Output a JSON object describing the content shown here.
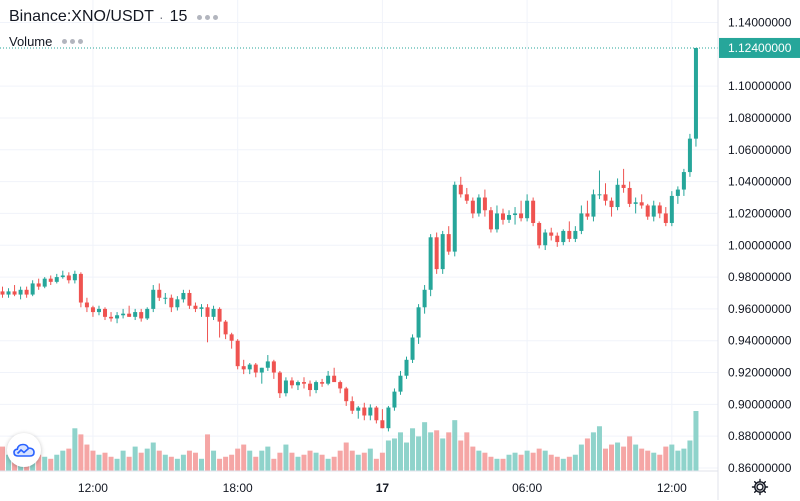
{
  "legend": {
    "symbol": "Binance:XNO/USDT",
    "separator": "·",
    "interval": "15",
    "volume_label": "Volume"
  },
  "colors": {
    "up": "#26a69a",
    "down": "#ef5350",
    "up_volume": "#8fd3cb",
    "down_volume": "#f5a6a5",
    "grid": "#f0f3fa",
    "axis_text": "#131722",
    "last_price_bg": "#26a69a"
  },
  "icons": {
    "brand": "tradingview-cloud-icon",
    "settings": "gear-icon"
  },
  "chart_data": {
    "type": "candlestick",
    "symbol": "Binance:XNO/USDT",
    "interval": "15",
    "ylim": [
      0.86,
      1.144
    ],
    "y_ticks": [
      {
        "v": 1.14,
        "label": "1.14000000"
      },
      {
        "v": 1.1,
        "label": "1.10000000"
      },
      {
        "v": 1.08,
        "label": "1.08000000"
      },
      {
        "v": 1.06,
        "label": "1.06000000"
      },
      {
        "v": 1.04,
        "label": "1.04000000"
      },
      {
        "v": 1.02,
        "label": "1.02000000"
      },
      {
        "v": 1.0,
        "label": "1.00000000"
      },
      {
        "v": 0.98,
        "label": "0.98000000"
      },
      {
        "v": 0.96,
        "label": "0.96000000"
      },
      {
        "v": 0.94,
        "label": "0.94000000"
      },
      {
        "v": 0.92,
        "label": "0.92000000"
      },
      {
        "v": 0.9,
        "label": "0.90000000"
      },
      {
        "v": 0.88,
        "label": "0.88000000"
      },
      {
        "v": 0.86,
        "label": "0.86000000"
      }
    ],
    "x_ticks": [
      {
        "i": 15,
        "label": "12:00",
        "bold": false
      },
      {
        "i": 39,
        "label": "18:00",
        "bold": false
      },
      {
        "i": 63,
        "label": "17",
        "bold": true
      },
      {
        "i": 87,
        "label": "06:00",
        "bold": false
      },
      {
        "i": 111,
        "label": "12:00",
        "bold": false
      }
    ],
    "last_price": {
      "v": 1.124,
      "label": "1.12400000"
    },
    "grid": true,
    "volume": {
      "ylim": [
        0,
        0.0295
      ]
    },
    "candles": [
      [
        0.971,
        0.974,
        0.967,
        0.969,
        0.012
      ],
      [
        0.969,
        0.973,
        0.967,
        0.971,
        0.008
      ],
      [
        0.971,
        0.975,
        0.968,
        0.969,
        0.007
      ],
      [
        0.969,
        0.974,
        0.966,
        0.972,
        0.009
      ],
      [
        0.972,
        0.974,
        0.967,
        0.969,
        0.006
      ],
      [
        0.969,
        0.978,
        0.968,
        0.976,
        0.01
      ],
      [
        0.976,
        0.979,
        0.972,
        0.974,
        0.008
      ],
      [
        0.974,
        0.98,
        0.973,
        0.979,
        0.007
      ],
      [
        0.979,
        0.981,
        0.975,
        0.977,
        0.006
      ],
      [
        0.977,
        0.982,
        0.976,
        0.98,
        0.008
      ],
      [
        0.98,
        0.984,
        0.979,
        0.981,
        0.01
      ],
      [
        0.981,
        0.983,
        0.976,
        0.978,
        0.011
      ],
      [
        0.978,
        0.984,
        0.976,
        0.982,
        0.021
      ],
      [
        0.982,
        0.983,
        0.961,
        0.964,
        0.018
      ],
      [
        0.964,
        0.967,
        0.958,
        0.961,
        0.013
      ],
      [
        0.961,
        0.962,
        0.955,
        0.958,
        0.01
      ],
      [
        0.958,
        0.962,
        0.956,
        0.96,
        0.008
      ],
      [
        0.96,
        0.961,
        0.953,
        0.955,
        0.009
      ],
      [
        0.955,
        0.958,
        0.952,
        0.954,
        0.007
      ],
      [
        0.954,
        0.958,
        0.951,
        0.956,
        0.006
      ],
      [
        0.956,
        0.96,
        0.954,
        0.957,
        0.01
      ],
      [
        0.957,
        0.962,
        0.955,
        0.955,
        0.007
      ],
      [
        0.955,
        0.96,
        0.953,
        0.958,
        0.012
      ],
      [
        0.958,
        0.96,
        0.952,
        0.954,
        0.009
      ],
      [
        0.954,
        0.961,
        0.953,
        0.96,
        0.011
      ],
      [
        0.96,
        0.975,
        0.958,
        0.972,
        0.014
      ],
      [
        0.972,
        0.976,
        0.965,
        0.967,
        0.01
      ],
      [
        0.967,
        0.97,
        0.963,
        0.967,
        0.008
      ],
      [
        0.967,
        0.969,
        0.958,
        0.961,
        0.007
      ],
      [
        0.961,
        0.968,
        0.959,
        0.966,
        0.006
      ],
      [
        0.966,
        0.972,
        0.964,
        0.97,
        0.008
      ],
      [
        0.97,
        0.972,
        0.96,
        0.962,
        0.01
      ],
      [
        0.962,
        0.964,
        0.958,
        0.96,
        0.009
      ],
      [
        0.96,
        0.963,
        0.955,
        0.961,
        0.006
      ],
      [
        0.961,
        0.963,
        0.939,
        0.955,
        0.018
      ],
      [
        0.955,
        0.962,
        0.953,
        0.96,
        0.01
      ],
      [
        0.96,
        0.961,
        0.942,
        0.952,
        0.006
      ],
      [
        0.952,
        0.953,
        0.941,
        0.944,
        0.007
      ],
      [
        0.944,
        0.945,
        0.935,
        0.94,
        0.008
      ],
      [
        0.94,
        0.941,
        0.922,
        0.924,
        0.011
      ],
      [
        0.924,
        0.928,
        0.919,
        0.922,
        0.013
      ],
      [
        0.922,
        0.926,
        0.919,
        0.925,
        0.01
      ],
      [
        0.925,
        0.926,
        0.917,
        0.92,
        0.007
      ],
      [
        0.92,
        0.923,
        0.913,
        0.923,
        0.01
      ],
      [
        0.923,
        0.931,
        0.921,
        0.927,
        0.012
      ],
      [
        0.927,
        0.928,
        0.916,
        0.92,
        0.006
      ],
      [
        0.92,
        0.921,
        0.904,
        0.907,
        0.009
      ],
      [
        0.907,
        0.917,
        0.905,
        0.915,
        0.013
      ],
      [
        0.915,
        0.917,
        0.91,
        0.912,
        0.009
      ],
      [
        0.912,
        0.915,
        0.909,
        0.914,
        0.007
      ],
      [
        0.914,
        0.917,
        0.91,
        0.913,
        0.008
      ],
      [
        0.913,
        0.915,
        0.905,
        0.909,
        0.01
      ],
      [
        0.909,
        0.915,
        0.907,
        0.914,
        0.009
      ],
      [
        0.914,
        0.916,
        0.911,
        0.913,
        0.008
      ],
      [
        0.913,
        0.921,
        0.912,
        0.918,
        0.006
      ],
      [
        0.918,
        0.923,
        0.915,
        0.914,
        0.007
      ],
      [
        0.914,
        0.915,
        0.907,
        0.91,
        0.01
      ],
      [
        0.91,
        0.911,
        0.899,
        0.902,
        0.014
      ],
      [
        0.902,
        0.905,
        0.894,
        0.896,
        0.01
      ],
      [
        0.896,
        0.899,
        0.891,
        0.898,
        0.008
      ],
      [
        0.898,
        0.901,
        0.89,
        0.893,
        0.009
      ],
      [
        0.893,
        0.9,
        0.89,
        0.898,
        0.011
      ],
      [
        0.898,
        0.899,
        0.888,
        0.89,
        0.006
      ],
      [
        0.89,
        0.897,
        0.885,
        0.885,
        0.009
      ],
      [
        0.885,
        0.899,
        0.883,
        0.898,
        0.015
      ],
      [
        0.898,
        0.91,
        0.896,
        0.908,
        0.016
      ],
      [
        0.908,
        0.921,
        0.906,
        0.918,
        0.019
      ],
      [
        0.918,
        0.93,
        0.916,
        0.928,
        0.014
      ],
      [
        0.928,
        0.944,
        0.926,
        0.942,
        0.021
      ],
      [
        0.942,
        0.963,
        0.938,
        0.961,
        0.017
      ],
      [
        0.961,
        0.975,
        0.957,
        0.972,
        0.024
      ],
      [
        0.972,
        1.007,
        0.968,
        1.005,
        0.019
      ],
      [
        1.005,
        1.008,
        0.982,
        0.985,
        0.02
      ],
      [
        0.985,
        1.009,
        0.982,
        1.007,
        0.016
      ],
      [
        1.007,
        1.012,
        0.994,
        0.996,
        0.019
      ],
      [
        0.996,
        1.04,
        0.993,
        1.038,
        0.025
      ],
      [
        1.038,
        1.043,
        1.03,
        1.032,
        0.015
      ],
      [
        1.032,
        1.036,
        1.026,
        1.028,
        0.019
      ],
      [
        1.028,
        1.03,
        1.017,
        1.02,
        0.012
      ],
      [
        1.02,
        1.032,
        1.018,
        1.03,
        0.01
      ],
      [
        1.03,
        1.035,
        1.018,
        1.022,
        0.009
      ],
      [
        1.022,
        1.024,
        1.008,
        1.01,
        0.007
      ],
      [
        1.01,
        1.025,
        1.008,
        1.02,
        0.006
      ],
      [
        1.02,
        1.023,
        1.013,
        1.016,
        0.006
      ],
      [
        1.016,
        1.022,
        1.014,
        1.019,
        0.008
      ],
      [
        1.019,
        1.024,
        1.013,
        1.02,
        0.009
      ],
      [
        1.02,
        1.028,
        1.015,
        1.017,
        0.008
      ],
      [
        1.017,
        1.032,
        1.015,
        1.028,
        0.01
      ],
      [
        1.028,
        1.03,
        1.012,
        1.014,
        0.009
      ],
      [
        1.014,
        1.015,
        0.998,
        1.0,
        0.011
      ],
      [
        1.0,
        1.01,
        0.997,
        1.008,
        0.01
      ],
      [
        1.008,
        1.011,
        1.003,
        1.006,
        0.008
      ],
      [
        1.006,
        1.008,
        0.999,
        1.002,
        0.007
      ],
      [
        1.002,
        1.01,
        1.0,
        1.009,
        0.006
      ],
      [
        1.009,
        1.015,
        1.002,
        1.004,
        0.007
      ],
      [
        1.004,
        1.012,
        1.002,
        1.009,
        0.008
      ],
      [
        1.009,
        1.025,
        1.007,
        1.02,
        0.013
      ],
      [
        1.02,
        1.028,
        1.016,
        1.018,
        0.016
      ],
      [
        1.018,
        1.035,
        1.015,
        1.032,
        0.019
      ],
      [
        1.032,
        1.047,
        1.029,
        1.032,
        0.022
      ],
      [
        1.032,
        1.039,
        1.025,
        1.028,
        0.011
      ],
      [
        1.028,
        1.03,
        1.018,
        1.024,
        0.013
      ],
      [
        1.024,
        1.042,
        1.022,
        1.038,
        0.014
      ],
      [
        1.038,
        1.048,
        1.033,
        1.036,
        0.012
      ],
      [
        1.036,
        1.04,
        1.024,
        1.026,
        0.017
      ],
      [
        1.026,
        1.03,
        1.02,
        1.027,
        0.013
      ],
      [
        1.027,
        1.032,
        1.023,
        1.025,
        0.011
      ],
      [
        1.025,
        1.026,
        1.016,
        1.018,
        0.01
      ],
      [
        1.018,
        1.028,
        1.015,
        1.025,
        0.009
      ],
      [
        1.025,
        1.027,
        1.017,
        1.02,
        0.008
      ],
      [
        1.02,
        1.024,
        1.012,
        1.014,
        0.012
      ],
      [
        1.014,
        1.034,
        1.012,
        1.031,
        0.013
      ],
      [
        1.031,
        1.037,
        1.026,
        1.035,
        0.01
      ],
      [
        1.035,
        1.048,
        1.031,
        1.046,
        0.011
      ],
      [
        1.046,
        1.07,
        1.043,
        1.067,
        0.015
      ],
      [
        1.067,
        1.124,
        1.062,
        1.124,
        0.0295
      ]
    ]
  }
}
